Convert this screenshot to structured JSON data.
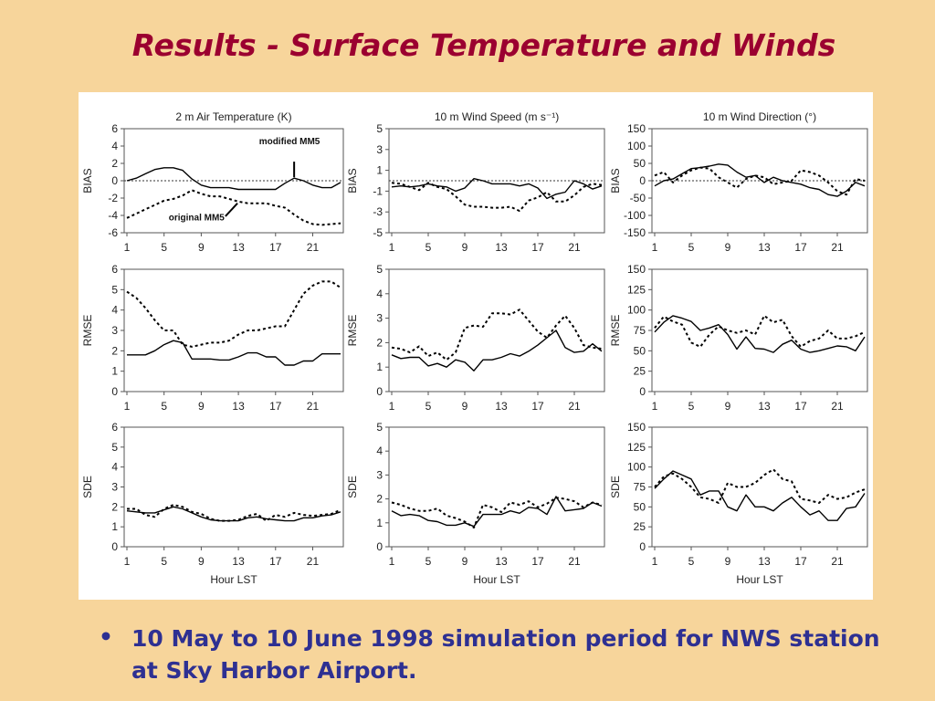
{
  "slide": {
    "title": "Results - Surface Temperature and Winds",
    "bullet_symbol": "•",
    "bullet_text": "10 May to 10 June 1998 simulation period for NWS station at Sky Harbor Airport."
  },
  "colors": {
    "background": "#f7d59b",
    "title": "#9b0030",
    "bullet": "#2e3092",
    "modified_series": "#000000",
    "original_series": "#000000"
  },
  "chart_data": [
    {
      "type": "line",
      "title": "2 m Air Temperature (K)",
      "ylabel": "BIAS",
      "xlabel": "",
      "ylim": [
        -6,
        6
      ],
      "yticks": [
        6,
        4,
        2,
        0,
        -2,
        -4,
        -6
      ],
      "x": [
        1,
        2,
        3,
        4,
        5,
        6,
        7,
        8,
        9,
        10,
        11,
        12,
        13,
        14,
        15,
        16,
        17,
        18,
        19,
        20,
        21,
        22,
        23,
        24
      ],
      "xticks": [
        1,
        5,
        9,
        13,
        17,
        21
      ],
      "zero_line": true,
      "annotations": [
        {
          "text": "modified MM5"
        },
        {
          "text": "original MM5"
        }
      ],
      "series": [
        {
          "name": "modified MM5",
          "style": "solid",
          "values": [
            0,
            0.3,
            0.8,
            1.3,
            1.5,
            1.5,
            1.2,
            0.2,
            -0.5,
            -0.8,
            -0.8,
            -0.8,
            -1,
            -1,
            -1,
            -1,
            -1,
            -0.3,
            0.3,
            0,
            -0.5,
            -0.8,
            -0.8,
            -0.2
          ]
        },
        {
          "name": "original MM5",
          "style": "dashed",
          "values": [
            -4.3,
            -3.8,
            -3.3,
            -2.8,
            -2.3,
            -2.1,
            -1.7,
            -1.1,
            -1.5,
            -1.8,
            -1.8,
            -2.1,
            -2.4,
            -2.6,
            -2.6,
            -2.6,
            -2.9,
            -3.1,
            -3.9,
            -4.6,
            -5,
            -5.1,
            -5,
            -4.9
          ]
        }
      ]
    },
    {
      "type": "line",
      "title": "10 m Wind Speed (m s⁻¹)",
      "ylabel": "BIAS",
      "xlabel": "",
      "ylim": [
        -5,
        5
      ],
      "yticks": [
        5,
        3,
        1,
        -1,
        -3,
        -5
      ],
      "x": [
        1,
        2,
        3,
        4,
        5,
        6,
        7,
        8,
        9,
        10,
        11,
        12,
        13,
        14,
        15,
        16,
        17,
        18,
        19,
        20,
        21,
        22,
        23,
        24
      ],
      "xticks": [
        1,
        5,
        9,
        13,
        17,
        21
      ],
      "zero_line": true,
      "series": [
        {
          "name": "modified MM5",
          "style": "solid",
          "values": [
            -0.6,
            -0.5,
            -0.6,
            -0.5,
            -0.3,
            -0.5,
            -0.6,
            -1,
            -0.7,
            0.2,
            0,
            -0.3,
            -0.3,
            -0.3,
            -0.5,
            -0.3,
            -0.7,
            -1.7,
            -1.3,
            -1.1,
            0,
            -0.3,
            -0.8,
            -0.5
          ]
        },
        {
          "name": "original MM5",
          "style": "dashed",
          "values": [
            -0.2,
            -0.3,
            -0.6,
            -0.9,
            -0.2,
            -0.6,
            -0.8,
            -1.5,
            -2.3,
            -2.5,
            -2.5,
            -2.6,
            -2.6,
            -2.5,
            -2.9,
            -1.9,
            -1.6,
            -1.1,
            -2,
            -2,
            -1.4,
            -0.6,
            -0.3,
            -0.4
          ]
        }
      ]
    },
    {
      "type": "line",
      "title": "10 m Wind Direction (°)",
      "ylabel": "BIAS",
      "xlabel": "",
      "ylim": [
        -150,
        150
      ],
      "yticks": [
        150,
        100,
        50,
        0,
        -50,
        -100,
        -150
      ],
      "x": [
        1,
        2,
        3,
        4,
        5,
        6,
        7,
        8,
        9,
        10,
        11,
        12,
        13,
        14,
        15,
        16,
        17,
        18,
        19,
        20,
        21,
        22,
        23,
        24
      ],
      "xticks": [
        1,
        5,
        9,
        13,
        17,
        21
      ],
      "zero_line": true,
      "series": [
        {
          "name": "modified MM5",
          "style": "solid",
          "values": [
            -15,
            0,
            5,
            20,
            35,
            38,
            42,
            48,
            45,
            25,
            10,
            15,
            -5,
            10,
            0,
            -5,
            -10,
            -20,
            -25,
            -40,
            -45,
            -30,
            -5,
            -15
          ]
        },
        {
          "name": "original MM5",
          "style": "dashed",
          "values": [
            15,
            25,
            -5,
            15,
            30,
            38,
            35,
            10,
            -5,
            -20,
            5,
            15,
            10,
            -10,
            -5,
            0,
            30,
            25,
            15,
            -5,
            -30,
            -40,
            5,
            0
          ]
        }
      ]
    },
    {
      "type": "line",
      "title": "",
      "ylabel": "RMSE",
      "xlabel": "",
      "ylim": [
        0,
        6
      ],
      "yticks": [
        6,
        5,
        4,
        3,
        2,
        1,
        0
      ],
      "x": [
        1,
        2,
        3,
        4,
        5,
        6,
        7,
        8,
        9,
        10,
        11,
        12,
        13,
        14,
        15,
        16,
        17,
        18,
        19,
        20,
        21,
        22,
        23,
        24
      ],
      "xticks": [
        1,
        5,
        9,
        13,
        17,
        21
      ],
      "zero_line": false,
      "series": [
        {
          "name": "modified MM5",
          "style": "solid",
          "values": [
            1.8,
            1.8,
            1.8,
            2,
            2.3,
            2.5,
            2.4,
            1.6,
            1.6,
            1.6,
            1.55,
            1.55,
            1.7,
            1.9,
            1.9,
            1.7,
            1.7,
            1.3,
            1.3,
            1.5,
            1.5,
            1.85,
            1.85,
            1.85
          ]
        },
        {
          "name": "original MM5",
          "style": "dashed",
          "values": [
            4.9,
            4.6,
            4.1,
            3.5,
            3,
            3,
            2.3,
            2.2,
            2.3,
            2.4,
            2.4,
            2.5,
            2.8,
            3,
            3,
            3.1,
            3.2,
            3.2,
            4,
            4.8,
            5.2,
            5.4,
            5.4,
            5.1
          ]
        }
      ]
    },
    {
      "type": "line",
      "title": "",
      "ylabel": "RMSE",
      "xlabel": "",
      "ylim": [
        0,
        5
      ],
      "yticks": [
        5,
        4,
        3,
        2,
        1,
        0
      ],
      "x": [
        1,
        2,
        3,
        4,
        5,
        6,
        7,
        8,
        9,
        10,
        11,
        12,
        13,
        14,
        15,
        16,
        17,
        18,
        19,
        20,
        21,
        22,
        23,
        24
      ],
      "xticks": [
        1,
        5,
        9,
        13,
        17,
        21
      ],
      "zero_line": false,
      "series": [
        {
          "name": "modified MM5",
          "style": "solid",
          "values": [
            1.5,
            1.35,
            1.4,
            1.4,
            1.05,
            1.15,
            1,
            1.3,
            1.2,
            0.85,
            1.3,
            1.3,
            1.4,
            1.55,
            1.45,
            1.65,
            1.9,
            2.2,
            2.5,
            1.8,
            1.6,
            1.65,
            1.95,
            1.65
          ]
        },
        {
          "name": "original MM5",
          "style": "dashed",
          "values": [
            1.8,
            1.75,
            1.6,
            1.85,
            1.45,
            1.6,
            1.3,
            1.6,
            2.6,
            2.7,
            2.65,
            3.2,
            3.2,
            3.15,
            3.35,
            2.9,
            2.45,
            2.2,
            2.7,
            3.1,
            2.6,
            1.9,
            1.8,
            1.75
          ]
        }
      ]
    },
    {
      "type": "line",
      "title": "",
      "ylabel": "RMSE",
      "xlabel": "",
      "ylim": [
        0,
        150
      ],
      "yticks": [
        150,
        125,
        100,
        75,
        50,
        25,
        0
      ],
      "x": [
        1,
        2,
        3,
        4,
        5,
        6,
        7,
        8,
        9,
        10,
        11,
        12,
        13,
        14,
        15,
        16,
        17,
        18,
        19,
        20,
        21,
        22,
        23,
        24
      ],
      "xticks": [
        1,
        5,
        9,
        13,
        17,
        21
      ],
      "zero_line": false,
      "series": [
        {
          "name": "modified MM5",
          "style": "solid",
          "values": [
            73,
            85,
            93,
            90,
            86,
            75,
            78,
            82,
            70,
            52,
            67,
            53,
            52,
            48,
            58,
            63,
            52,
            48,
            50,
            53,
            56,
            55,
            50,
            67
          ]
        },
        {
          "name": "original MM5",
          "style": "dashed",
          "values": [
            78,
            92,
            86,
            82,
            60,
            55,
            70,
            80,
            75,
            72,
            75,
            70,
            93,
            85,
            88,
            68,
            55,
            62,
            65,
            75,
            65,
            65,
            68,
            73
          ]
        }
      ]
    },
    {
      "type": "line",
      "title": "",
      "ylabel": "SDE",
      "xlabel": "Hour LST",
      "ylim": [
        0,
        6
      ],
      "yticks": [
        6,
        5,
        4,
        3,
        2,
        1,
        0
      ],
      "x": [
        1,
        2,
        3,
        4,
        5,
        6,
        7,
        8,
        9,
        10,
        11,
        12,
        13,
        14,
        15,
        16,
        17,
        18,
        19,
        20,
        21,
        22,
        23,
        24
      ],
      "xticks": [
        1,
        5,
        9,
        13,
        17,
        21
      ],
      "zero_line": false,
      "series": [
        {
          "name": "modified MM5",
          "style": "solid",
          "values": [
            1.8,
            1.75,
            1.7,
            1.7,
            1.85,
            2,
            1.9,
            1.7,
            1.5,
            1.35,
            1.3,
            1.3,
            1.3,
            1.45,
            1.5,
            1.4,
            1.35,
            1.3,
            1.3,
            1.45,
            1.45,
            1.55,
            1.6,
            1.75
          ]
        },
        {
          "name": "original MM5",
          "style": "dashed",
          "values": [
            1.9,
            1.9,
            1.6,
            1.5,
            1.9,
            2.1,
            2,
            1.75,
            1.65,
            1.4,
            1.3,
            1.3,
            1.35,
            1.55,
            1.65,
            1.3,
            1.6,
            1.5,
            1.7,
            1.6,
            1.55,
            1.6,
            1.65,
            1.85
          ]
        }
      ]
    },
    {
      "type": "line",
      "title": "",
      "ylabel": "SDE",
      "xlabel": "Hour LST",
      "ylim": [
        0,
        5
      ],
      "yticks": [
        5,
        4,
        3,
        2,
        1,
        0
      ],
      "x": [
        1,
        2,
        3,
        4,
        5,
        6,
        7,
        8,
        9,
        10,
        11,
        12,
        13,
        14,
        15,
        16,
        17,
        18,
        19,
        20,
        21,
        22,
        23,
        24
      ],
      "xticks": [
        1,
        5,
        9,
        13,
        17,
        21
      ],
      "zero_line": false,
      "series": [
        {
          "name": "modified MM5",
          "style": "solid",
          "values": [
            1.5,
            1.3,
            1.35,
            1.3,
            1.1,
            1.05,
            0.9,
            0.9,
            1,
            0.85,
            1.35,
            1.35,
            1.35,
            1.5,
            1.4,
            1.65,
            1.6,
            1.35,
            2.1,
            1.5,
            1.55,
            1.6,
            1.85,
            1.7
          ]
        },
        {
          "name": "original MM5",
          "style": "dashed",
          "values": [
            1.85,
            1.75,
            1.6,
            1.5,
            1.5,
            1.6,
            1.3,
            1.2,
            1.05,
            0.8,
            1.75,
            1.65,
            1.45,
            1.85,
            1.75,
            1.9,
            1.65,
            1.8,
            2.05,
            2,
            1.9,
            1.65,
            1.85,
            1.75
          ]
        }
      ]
    },
    {
      "type": "line",
      "title": "",
      "ylabel": "SDE",
      "xlabel": "Hour LST",
      "ylim": [
        0,
        150
      ],
      "yticks": [
        150,
        125,
        100,
        75,
        50,
        25,
        0
      ],
      "x": [
        1,
        2,
        3,
        4,
        5,
        6,
        7,
        8,
        9,
        10,
        11,
        12,
        13,
        14,
        15,
        16,
        17,
        18,
        19,
        20,
        21,
        22,
        23,
        24
      ],
      "xticks": [
        1,
        5,
        9,
        13,
        17,
        21
      ],
      "zero_line": false,
      "series": [
        {
          "name": "modified MM5",
          "style": "solid",
          "values": [
            73,
            85,
            95,
            90,
            85,
            65,
            70,
            70,
            50,
            45,
            65,
            50,
            50,
            45,
            55,
            62,
            50,
            40,
            45,
            33,
            33,
            48,
            50,
            67
          ]
        },
        {
          "name": "original MM5",
          "style": "dashed",
          "values": [
            75,
            88,
            92,
            85,
            75,
            62,
            60,
            55,
            80,
            75,
            75,
            80,
            90,
            97,
            85,
            82,
            60,
            58,
            55,
            65,
            60,
            62,
            68,
            72
          ]
        }
      ]
    }
  ]
}
